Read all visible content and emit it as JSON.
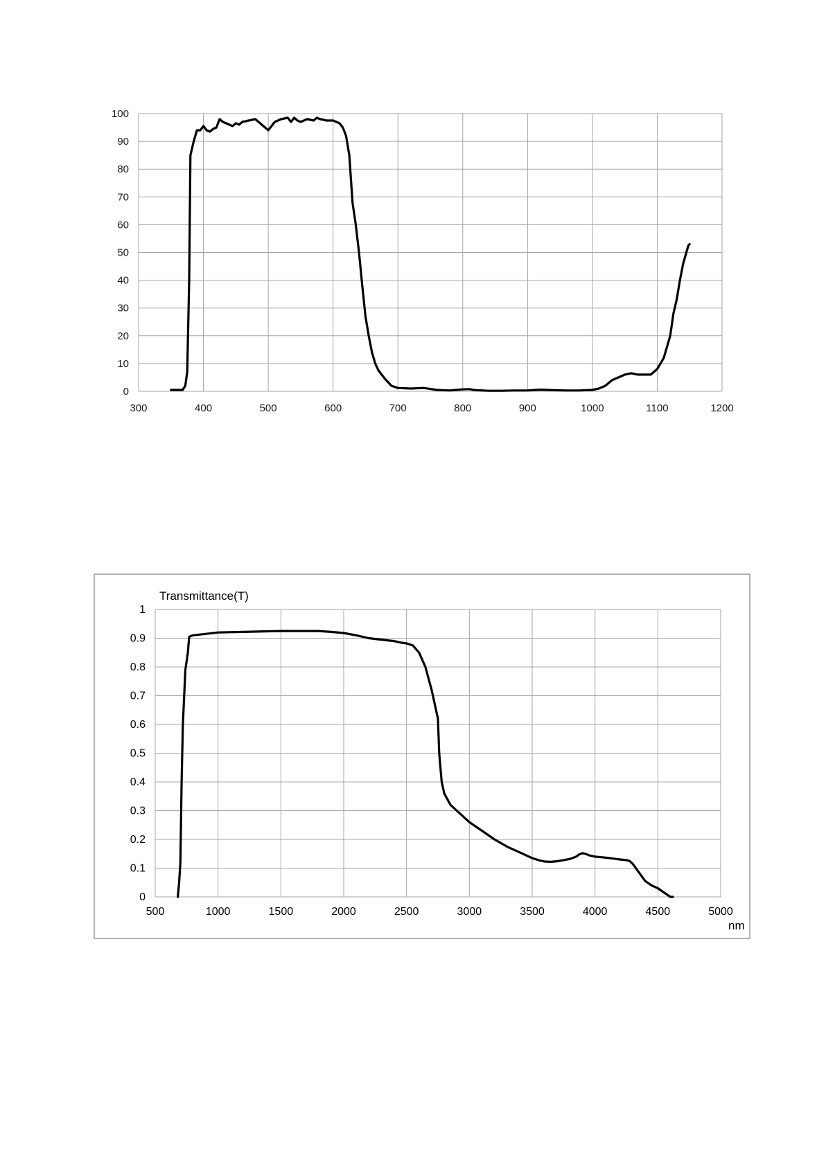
{
  "chart_data": [
    {
      "type": "line",
      "title": "",
      "xlabel": "",
      "ylabel": "",
      "xlim": [
        300,
        1200
      ],
      "ylim": [
        0,
        100
      ],
      "x_ticks": [
        300,
        400,
        500,
        600,
        700,
        800,
        900,
        1000,
        1100,
        1200
      ],
      "y_ticks": [
        0,
        10,
        20,
        30,
        40,
        50,
        60,
        70,
        80,
        90,
        100
      ],
      "grid": true,
      "series": [
        {
          "x": [
            350,
            360,
            368,
            372,
            375,
            378,
            380,
            385,
            390,
            395,
            400,
            405,
            410,
            415,
            420,
            425,
            430,
            440,
            445,
            450,
            455,
            460,
            470,
            480,
            490,
            500,
            510,
            520,
            530,
            535,
            540,
            545,
            550,
            560,
            570,
            575,
            580,
            590,
            600,
            605,
            610,
            615,
            620,
            625,
            630,
            635,
            640,
            645,
            650,
            655,
            660,
            665,
            670,
            680,
            690,
            700,
            720,
            740,
            760,
            780,
            790,
            800,
            810,
            820,
            840,
            860,
            880,
            900,
            920,
            940,
            960,
            980,
            1000,
            1010,
            1020,
            1030,
            1040,
            1050,
            1060,
            1070,
            1080,
            1090,
            1100,
            1110,
            1120,
            1125,
            1130,
            1135,
            1140,
            1145,
            1148,
            1150
          ],
          "y": [
            0.5,
            0.5,
            0.5,
            2,
            7,
            40,
            85,
            90,
            94,
            94,
            95.5,
            94,
            93.5,
            94.5,
            95,
            98,
            97,
            96,
            95.5,
            96.5,
            96,
            97,
            97.5,
            98,
            96,
            94,
            97,
            98,
            98.5,
            97,
            98.5,
            97.5,
            97,
            98,
            97.5,
            98.5,
            98,
            97.5,
            97.5,
            97,
            96.5,
            95,
            92,
            85,
            68,
            60,
            50,
            38,
            27,
            20,
            14,
            10,
            7.5,
            4.5,
            2,
            1.2,
            1,
            1.2,
            0.5,
            0.3,
            0.5,
            0.7,
            0.8,
            0.4,
            0.2,
            0.2,
            0.3,
            0.3,
            0.6,
            0.4,
            0.3,
            0.3,
            0.5,
            1,
            2,
            4,
            5,
            6,
            6.5,
            6,
            6,
            6,
            8,
            12,
            20,
            28,
            33,
            40,
            46,
            50,
            52.5,
            53
          ]
        }
      ]
    },
    {
      "type": "line",
      "title": "",
      "xlabel": "nm",
      "ylabel": "Transmittance(T)",
      "xlim": [
        500,
        5000
      ],
      "ylim": [
        0,
        1
      ],
      "x_ticks": [
        500,
        1000,
        1500,
        2000,
        2500,
        3000,
        3500,
        4000,
        4500,
        5000
      ],
      "y_ticks": [
        0,
        0.1,
        0.2,
        0.3,
        0.4,
        0.5,
        0.6,
        0.7,
        0.8,
        0.9,
        1
      ],
      "grid": true,
      "series": [
        {
          "x": [
            680,
            690,
            700,
            710,
            720,
            740,
            760,
            770,
            800,
            900,
            1000,
            1200,
            1500,
            1700,
            1800,
            1900,
            2000,
            2100,
            2200,
            2300,
            2400,
            2450,
            2500,
            2550,
            2600,
            2650,
            2700,
            2750,
            2760,
            2770,
            2780,
            2800,
            2850,
            2900,
            3000,
            3100,
            3200,
            3300,
            3400,
            3500,
            3550,
            3600,
            3650,
            3700,
            3750,
            3800,
            3850,
            3875,
            3900,
            3925,
            3950,
            4000,
            4050,
            4100,
            4150,
            4200,
            4250,
            4275,
            4300,
            4350,
            4400,
            4450,
            4500,
            4550,
            4600,
            4620
          ],
          "y": [
            0.0,
            0.05,
            0.12,
            0.4,
            0.6,
            0.79,
            0.85,
            0.905,
            0.91,
            0.915,
            0.92,
            0.922,
            0.925,
            0.925,
            0.925,
            0.922,
            0.918,
            0.91,
            0.9,
            0.895,
            0.89,
            0.885,
            0.882,
            0.875,
            0.85,
            0.8,
            0.72,
            0.62,
            0.5,
            0.45,
            0.4,
            0.36,
            0.32,
            0.3,
            0.26,
            0.23,
            0.2,
            0.175,
            0.155,
            0.135,
            0.128,
            0.123,
            0.122,
            0.124,
            0.128,
            0.132,
            0.14,
            0.148,
            0.152,
            0.15,
            0.145,
            0.14,
            0.138,
            0.136,
            0.133,
            0.13,
            0.128,
            0.125,
            0.115,
            0.085,
            0.055,
            0.04,
            0.03,
            0.015,
            0.0,
            0.0
          ]
        }
      ]
    }
  ]
}
